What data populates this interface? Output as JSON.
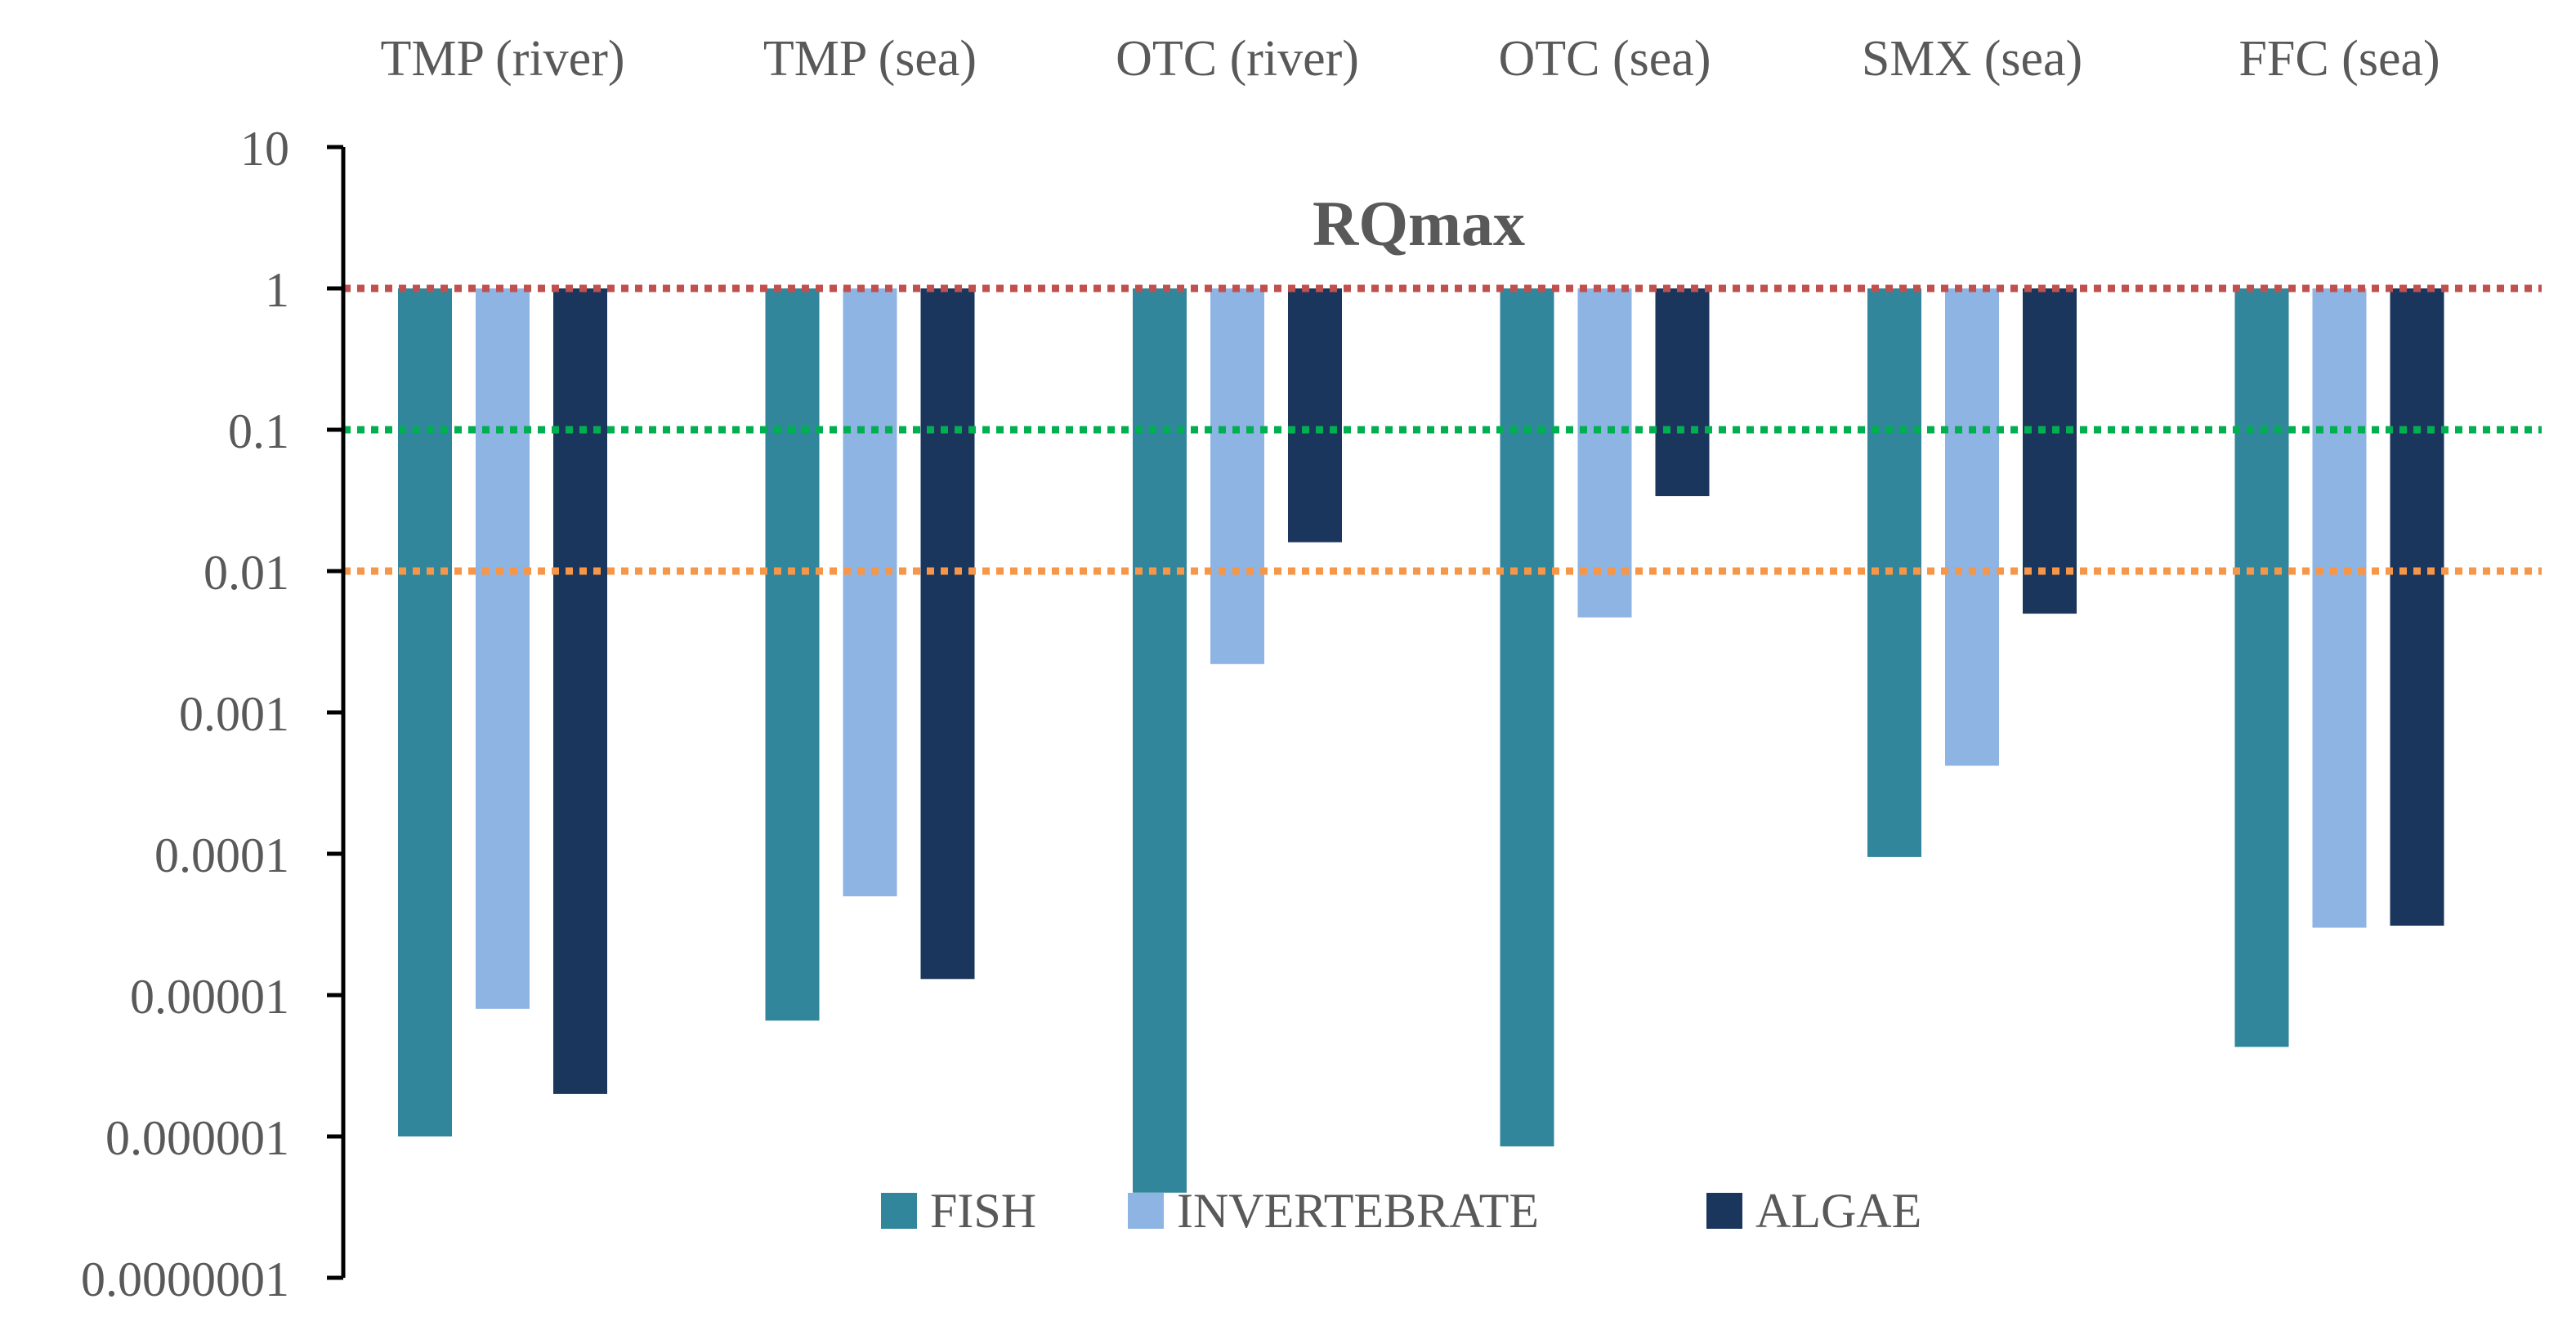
{
  "chart_data": {
    "type": "bar",
    "title": "RQmax",
    "yscale": "log",
    "ylim": [
      1e-07,
      10
    ],
    "y_ticks": [
      "10",
      "1",
      "0.1",
      "0.01",
      "0.001",
      "0.0001",
      "0.00001",
      "0.000001",
      "0.0000001"
    ],
    "y_tick_values": [
      10,
      1,
      0.1,
      0.01,
      0.001,
      0.0001,
      1e-05,
      1e-06,
      1e-07
    ],
    "baseline": 1,
    "categories": [
      "TMP (river)",
      "TMP (sea)",
      "OTC (river)",
      "OTC (sea)",
      "SMX (sea)",
      "FFC (sea)"
    ],
    "series": [
      {
        "name": "FISH",
        "color": "#31869B",
        "values": [
          1e-06,
          6.6e-06,
          4e-07,
          8.5e-07,
          9.5e-05,
          4.3e-06
        ]
      },
      {
        "name": "INVERTEBRATE",
        "color": "#8EB4E3",
        "values": [
          8e-06,
          5e-05,
          0.0022,
          0.0047,
          0.00042,
          3e-05
        ]
      },
      {
        "name": "ALGAE",
        "color": "#1B365D",
        "values": [
          2e-06,
          1.3e-05,
          0.016,
          0.034,
          0.005,
          3.1e-05
        ]
      }
    ],
    "threshold_lines": [
      {
        "value": 1,
        "color": "#C0504D",
        "style": "dotted"
      },
      {
        "value": 0.1,
        "color": "#00B050",
        "style": "dotted"
      },
      {
        "value": 0.01,
        "color": "#F79646",
        "style": "dotted"
      }
    ],
    "legend_position": "bottom-center",
    "grid": false
  }
}
